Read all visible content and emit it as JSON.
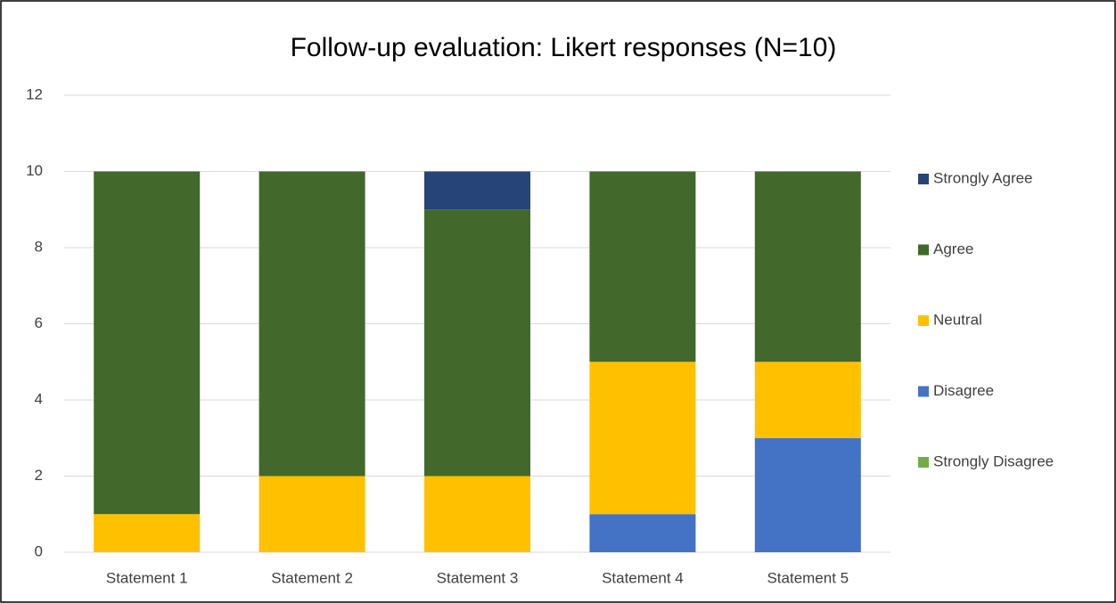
{
  "chart_data": {
    "type": "stacked-bar",
    "title": "Follow-up evaluation: Likert responses (N=10)",
    "categories": [
      "Statement 1",
      "Statement 2",
      "Statement 3",
      "Statement 4",
      "Statement 5"
    ],
    "series": [
      {
        "name": "Strongly Disagree",
        "color": "#70ad47",
        "values": [
          0,
          0,
          0,
          0,
          0
        ]
      },
      {
        "name": "Disagree",
        "color": "#4472c4",
        "values": [
          0,
          0,
          0,
          1,
          3
        ]
      },
      {
        "name": "Neutral",
        "color": "#ffc000",
        "values": [
          1,
          2,
          2,
          4,
          2
        ]
      },
      {
        "name": "Agree",
        "color": "#43682b",
        "values": [
          9,
          8,
          7,
          5,
          5
        ]
      },
      {
        "name": "Strongly Agree",
        "color": "#264478",
        "values": [
          0,
          0,
          1,
          0,
          0
        ]
      }
    ],
    "ylim": [
      0,
      12
    ],
    "yticks": [
      0,
      2,
      4,
      6,
      8,
      10,
      12
    ],
    "grid": true,
    "legend": "right"
  }
}
